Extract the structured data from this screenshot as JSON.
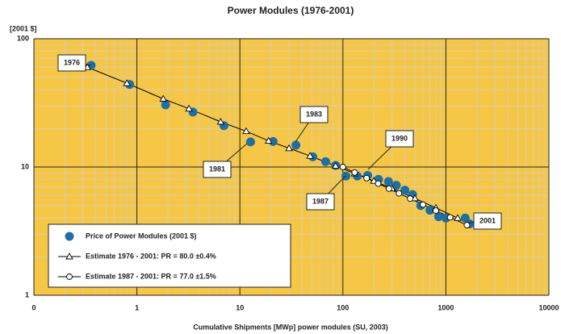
{
  "chart_data": {
    "type": "scatter",
    "title": "Power Modules (1976-2001)",
    "y_unit": "[2001 $]",
    "xlabel": "Cumulative Shipments [MWp] power modules (SU, 2003)",
    "log_x": true,
    "log_y": true,
    "grid": true,
    "xlim": [
      0.1,
      10000
    ],
    "ylim": [
      1,
      100
    ],
    "xticks": [
      {
        "value": 0.1,
        "label": "0"
      },
      1,
      10,
      100,
      1000,
      10000
    ],
    "yticks": [
      1,
      10,
      100
    ],
    "legend": "lower left",
    "series": [
      {
        "name": "Price of Power Modules (2001 $)",
        "color": "#1f6fa3",
        "marker": "dot",
        "x": [
          0.36,
          0.85,
          1.9,
          3.5,
          7,
          12.7,
          21,
          35,
          51,
          68,
          85,
          107,
          138,
          174,
          222,
          277,
          330,
          400,
          475,
          570,
          700,
          850,
          1000,
          1540,
          1700
        ],
        "values": [
          62,
          44,
          30.5,
          26.8,
          21,
          15.7,
          15.8,
          14.8,
          12,
          11,
          10.3,
          8.5,
          8.5,
          8.6,
          8.0,
          7.7,
          7.2,
          6.6,
          6.1,
          5.0,
          4.6,
          4.1,
          4.0,
          4.0,
          3.6
        ]
      },
      {
        "name": "Estimate 1976 - 2001: PR = 80.0 ±0.4%",
        "color": "#000000",
        "marker": "triangle",
        "x": [
          0.33,
          0.8,
          1.8,
          3.2,
          6.5,
          11.5,
          19,
          30,
          48,
          85,
          130,
          200,
          300,
          500,
          800,
          1300
        ],
        "values": [
          60,
          45,
          34,
          28.5,
          22.5,
          19,
          16,
          14,
          12.2,
          10.2,
          8.9,
          7.8,
          6.8,
          5.7,
          4.8,
          4.0
        ]
      },
      {
        "name": "Estimate 1987 - 2001: PR = 77.0 ±1.5%",
        "color": "#000000",
        "marker": "circle",
        "x": [
          100,
          130,
          170,
          220,
          280,
          350,
          450,
          600,
          800,
          1100,
          1600
        ],
        "values": [
          10,
          9.06,
          8.19,
          7.43,
          6.78,
          6.23,
          5.67,
          5.09,
          4.57,
          4.05,
          3.52
        ]
      }
    ],
    "annotations": [
      "1976",
      "1981",
      "1983",
      "1987",
      "1990",
      "2001"
    ]
  }
}
